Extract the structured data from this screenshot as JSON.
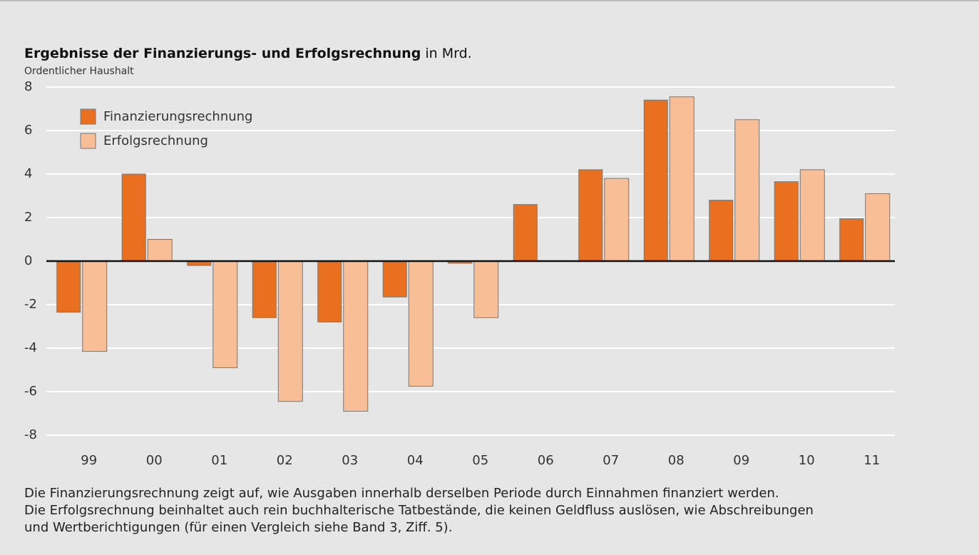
{
  "chart_data": {
    "type": "bar",
    "title": "Ergebnisse der Finanzierungs- und Erfolgsrechnung",
    "title_unit": "in Mrd.",
    "subtitle": "Ordentlicher Haushalt",
    "categories": [
      "99",
      "00",
      "01",
      "02",
      "03",
      "04",
      "05",
      "06",
      "07",
      "08",
      "09",
      "10",
      "11"
    ],
    "series": [
      {
        "name": "Finanzierungsrechnung",
        "color": "#e8701f",
        "values": [
          -2.35,
          4.0,
          -0.2,
          -2.6,
          -2.8,
          -1.65,
          -0.1,
          2.6,
          4.2,
          7.4,
          2.8,
          3.65,
          1.95
        ]
      },
      {
        "name": "Erfolgsrechnung",
        "color": "#f8bf96",
        "values": [
          -4.15,
          1.0,
          -4.9,
          -6.45,
          -6.9,
          -5.75,
          -2.6,
          null,
          3.8,
          7.55,
          6.5,
          4.2,
          3.1
        ]
      }
    ],
    "ylim": [
      -8,
      8
    ],
    "yticks": [
      -8,
      -6,
      -4,
      -2,
      0,
      2,
      4,
      6,
      8
    ],
    "grid": true,
    "legend": "upper left",
    "notes": [
      "Die Finanzierungsrechnung zeigt auf, wie Ausgaben innerhalb derselben Periode durch Einnahmen finanziert werden.",
      "Die Erfolgsrechnung beinhaltet auch rein buchhalterische Tatbestände, die keinen Geldfluss auslösen, wie Abschreibungen",
      "und Wertberichtigungen (für einen Vergleich siehe Band 3, Ziff. 5)."
    ]
  }
}
